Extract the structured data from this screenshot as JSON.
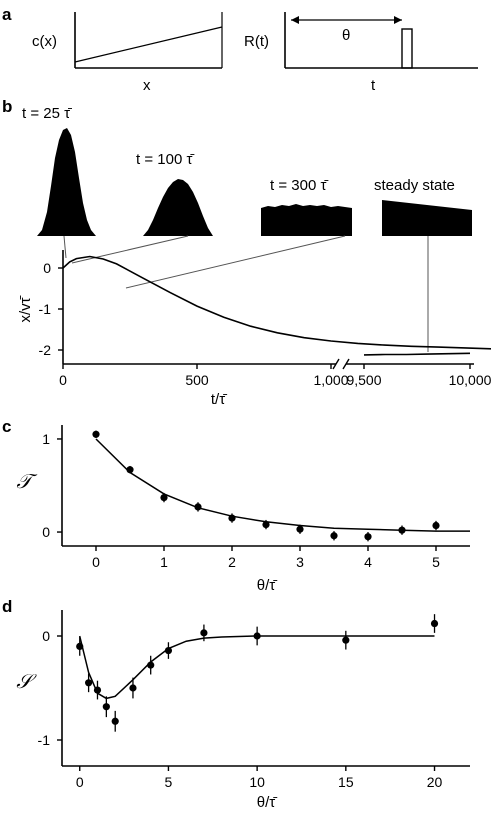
{
  "panels": {
    "a": {
      "label": "a",
      "left_ylabel": "c(x)",
      "left_xlabel": "x",
      "right_ylabel": "R(t)",
      "right_xlabel": "t",
      "theta_symbol": "θ"
    },
    "b": {
      "label": "b",
      "snapshot_labels": [
        "t = 25 τ̄",
        "t = 100 τ̄",
        "t = 300 τ̄",
        "steady state"
      ]
    },
    "c": {
      "label": "c"
    },
    "d": {
      "label": "d"
    }
  },
  "chart_data": [
    {
      "type": "line",
      "panel": "b",
      "xlabel": "t/τ̄",
      "ylabel": "x/vτ̄",
      "x_ticks": [
        "0",
        "500",
        "1,000",
        "9,500",
        "10,000"
      ],
      "y_ticks": [
        "0",
        "-1",
        "-2"
      ],
      "ylim": [
        -2.3,
        0.6
      ],
      "axis_break": true,
      "series": [
        {
          "x": [
            0,
            25,
            50,
            100,
            150,
            200,
            300,
            400,
            500,
            600,
            700,
            800,
            900,
            1000,
            1100,
            1200,
            1300,
            1400,
            1500,
            1600
          ],
          "y": [
            0.0,
            0.15,
            0.23,
            0.28,
            0.22,
            0.1,
            -0.25,
            -0.6,
            -0.93,
            -1.2,
            -1.42,
            -1.58,
            -1.7,
            -1.78,
            -1.84,
            -1.88,
            -1.91,
            -1.93,
            -1.95,
            -1.97
          ]
        },
        {
          "x": [
            9500,
            9600,
            9700,
            9800,
            9900,
            10000
          ],
          "y": [
            -2.12,
            -2.11,
            -2.11,
            -2.1,
            -2.09,
            -2.08
          ]
        }
      ]
    },
    {
      "type": "scatter",
      "panel": "c",
      "ylabel": "𝒯",
      "xlabel": "θ/τ̄",
      "x_ticks": [
        "0",
        "1",
        "2",
        "3",
        "4",
        "5"
      ],
      "y_ticks": [
        "0",
        "1"
      ],
      "xlim": [
        -0.5,
        5.5
      ],
      "ylim": [
        -0.15,
        1.15
      ],
      "points": {
        "x": [
          0,
          0.5,
          1,
          1.5,
          2,
          2.5,
          3,
          3.5,
          4,
          4.5,
          5
        ],
        "y": [
          1.05,
          0.67,
          0.37,
          0.27,
          0.15,
          0.08,
          0.03,
          -0.04,
          -0.05,
          0.02,
          0.07
        ],
        "err": [
          0.04,
          0.04,
          0.05,
          0.05,
          0.05,
          0.05,
          0.05,
          0.05,
          0.05,
          0.05,
          0.05
        ]
      },
      "fit": {
        "x": [
          0,
          0.5,
          1,
          1.5,
          2,
          2.5,
          3,
          3.5,
          4,
          4.5,
          5,
          5.5
        ],
        "y": [
          1.0,
          0.64,
          0.41,
          0.26,
          0.17,
          0.11,
          0.07,
          0.04,
          0.03,
          0.02,
          0.01,
          0.01
        ]
      }
    },
    {
      "type": "scatter",
      "panel": "d",
      "ylabel": "𝒮",
      "xlabel": "θ/τ̄",
      "x_ticks": [
        "0",
        "5",
        "10",
        "15",
        "20"
      ],
      "y_ticks": [
        "0",
        "-1"
      ],
      "xlim": [
        -1,
        22
      ],
      "ylim": [
        -1.25,
        0.25
      ],
      "points": {
        "x": [
          0,
          0.5,
          1,
          1.5,
          2,
          3,
          4,
          5,
          7,
          10,
          15,
          20
        ],
        "y": [
          -0.1,
          -0.45,
          -0.52,
          -0.68,
          -0.82,
          -0.5,
          -0.28,
          -0.14,
          0.03,
          0.0,
          -0.04,
          0.12
        ],
        "err": [
          0.09,
          0.09,
          0.09,
          0.1,
          0.1,
          0.1,
          0.09,
          0.08,
          0.08,
          0.09,
          0.09,
          0.09
        ]
      },
      "fit": {
        "x": [
          0,
          0.5,
          1,
          1.5,
          2,
          3,
          4,
          5,
          6,
          7,
          8,
          10,
          12,
          15,
          20
        ],
        "y": [
          0.0,
          -0.35,
          -0.55,
          -0.6,
          -0.58,
          -0.42,
          -0.25,
          -0.12,
          -0.05,
          -0.02,
          -0.01,
          0.0,
          0.0,
          0.0,
          0.0
        ]
      }
    }
  ]
}
